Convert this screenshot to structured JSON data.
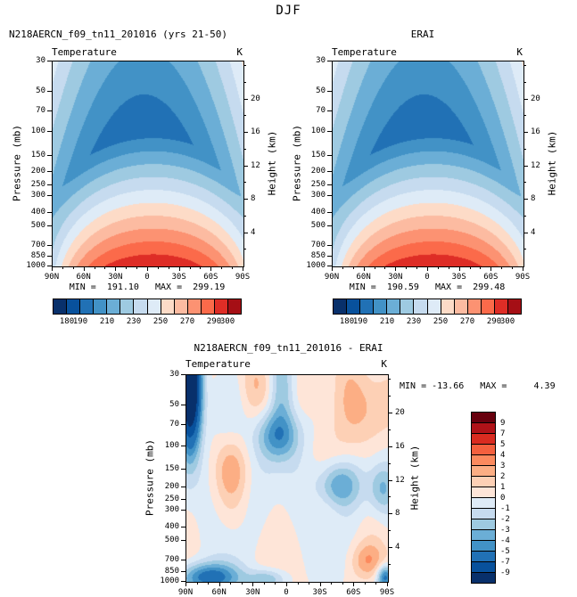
{
  "chart_data": {
    "type": "heatmap",
    "title": "DJF",
    "panels": [
      {
        "id": "model",
        "title": "N218AERCN_f09_tn11_201016 (yrs 21-50)",
        "field_label": "Temperature",
        "units": "K",
        "min": 191.1,
        "max": 299.19,
        "minmax_text": "MIN =  191.10   MAX =  299.19"
      },
      {
        "id": "erai",
        "title": "ERAI",
        "field_label": "Temperature",
        "units": "K",
        "min": 190.59,
        "max": 299.48,
        "minmax_text": "MIN =  190.59   MAX =  299.48"
      },
      {
        "id": "diff",
        "title": "N218AERCN_f09_tn11_201016 - ERAI",
        "field_label": "Temperature",
        "units": "K",
        "min": -13.66,
        "max": 4.39,
        "minmax_text": "MIN = -13.66   MAX =     4.39"
      }
    ],
    "axes": {
      "pressure_label": "Pressure (mb)",
      "height_label": "Height (km)",
      "pressure_ticks": [
        30,
        50,
        70,
        100,
        150,
        200,
        250,
        300,
        400,
        500,
        700,
        850,
        1000
      ],
      "height_ticks": [
        20,
        16,
        12,
        8,
        4
      ],
      "lat_ticks": [
        "90N",
        "60N",
        "30N",
        "0",
        "30S",
        "60S",
        "90S"
      ],
      "pressure_range": [
        30,
        1000
      ],
      "lat_range_deg": [
        90,
        -90
      ]
    },
    "colorbar_abs": {
      "levels": [
        180,
        190,
        200,
        210,
        220,
        230,
        240,
        250,
        260,
        270,
        280,
        290,
        300
      ],
      "labels": [
        180,
        190,
        210,
        230,
        250,
        270,
        290,
        300
      ],
      "colors": [
        "#08306b",
        "#08519c",
        "#2171b5",
        "#4292c6",
        "#6baed6",
        "#9ecae1",
        "#c6dbef",
        "#deebf7",
        "#fddbc7",
        "#fcbba1",
        "#fc9272",
        "#fb6a4a",
        "#de2d26",
        "#a50f15"
      ]
    },
    "colorbar_diff": {
      "levels": [
        -9,
        -7,
        -5,
        -4,
        -3,
        -2,
        -1,
        0,
        1,
        2,
        3,
        4,
        5,
        7,
        9
      ],
      "labels": [
        9,
        7,
        5,
        4,
        3,
        2,
        1,
        0,
        -1,
        -2,
        -3,
        -4,
        -5,
        -7,
        -9
      ],
      "colors": [
        "#08306b",
        "#08519c",
        "#2171b5",
        "#4292c6",
        "#6baed6",
        "#9ecae1",
        "#c6dbef",
        "#deebf7",
        "#fee5d8",
        "#fdd0b5",
        "#fcae84",
        "#fc8a5e",
        "#f4603e",
        "#d92b20",
        "#b01218",
        "#67000d"
      ]
    }
  }
}
